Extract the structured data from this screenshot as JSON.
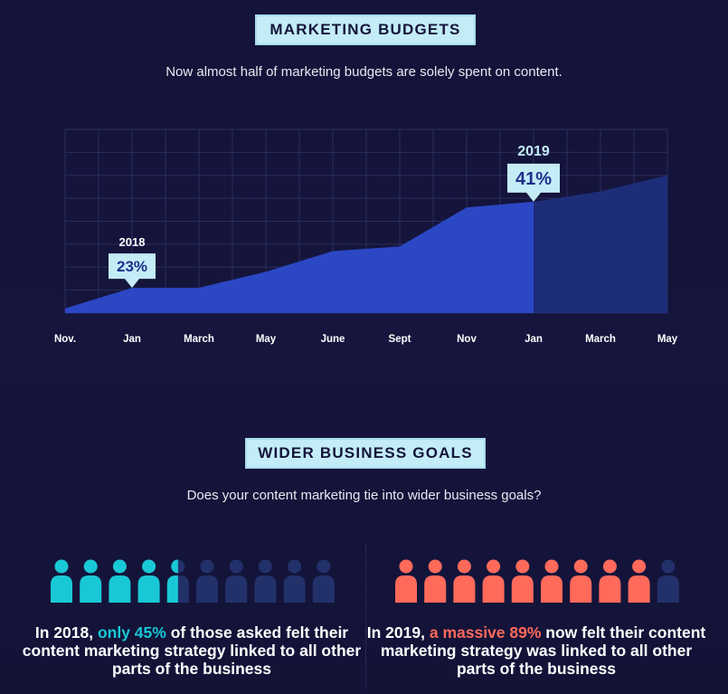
{
  "section1": {
    "title": "MARKETING BUDGETS",
    "subtitle": "Now almost half of marketing budgets are solely spent on content."
  },
  "chart_data": {
    "type": "area",
    "categories": [
      "Nov.",
      "Jan",
      "March",
      "May",
      "June",
      "Sept",
      "Nov",
      "Jan",
      "March",
      "May"
    ],
    "values": [
      2,
      11,
      11,
      18,
      27,
      29,
      46,
      48.5,
      53,
      60
    ],
    "ylim": [
      0,
      80
    ],
    "projected_from_index": 7,
    "grid": true,
    "annotations": [
      {
        "year": "2018",
        "label": "23%",
        "category_index": 1
      },
      {
        "year": "2019",
        "label": "41%",
        "category_index": 7
      }
    ],
    "colors": {
      "fill": "#2b47c4",
      "projected_fill": "#1e2d78",
      "grid": "#2c2c5c",
      "callout": "#c3ecf6"
    }
  },
  "section2": {
    "title": "WIDER BUSINESS GOALS",
    "subtitle": "Does your content marketing tie into wider business goals?"
  },
  "panels": [
    {
      "percent": 45,
      "color": "#19c8d6",
      "text_before": "In 2018, ",
      "highlight": "only 45%",
      "text_after": " of those asked felt their content marketing strategy linked to all other parts of the business"
    },
    {
      "percent": 89,
      "color": "#ff6a5a",
      "text_before": "In 2019, ",
      "highlight": "a massive 89%",
      "text_after": " now felt their content marketing strategy was linked to all other parts of the business"
    }
  ],
  "people_base_color": "#22316a"
}
